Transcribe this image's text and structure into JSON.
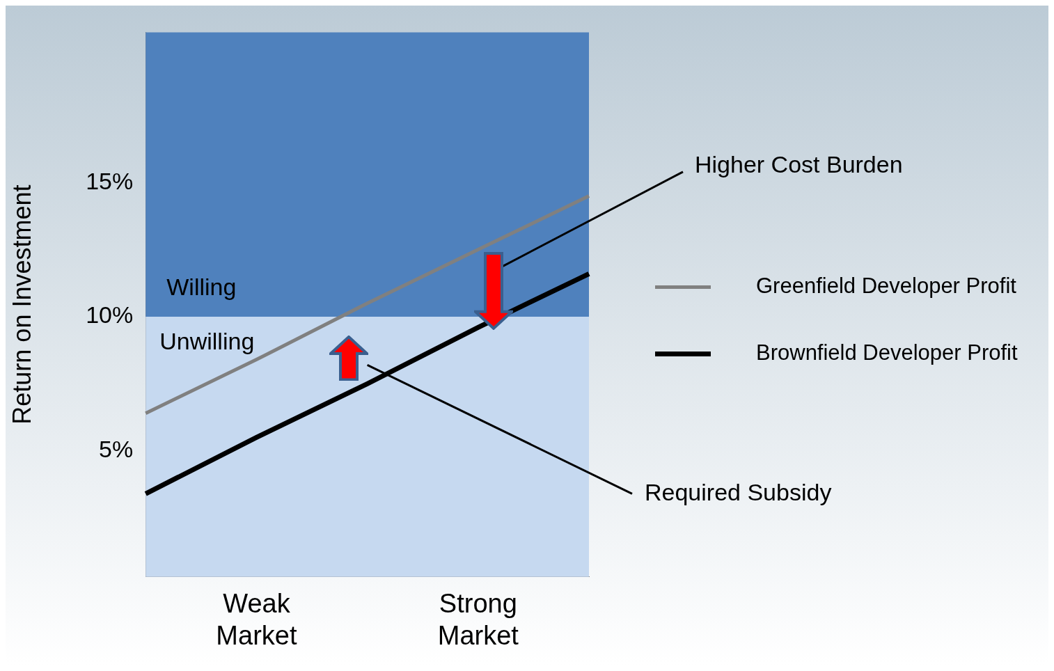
{
  "chart_data": {
    "type": "line",
    "ylabel": "Return on Investment",
    "categories": [
      null,
      "Weak Market",
      null,
      "Strong Market",
      null
    ],
    "ylim": [
      0.3,
      20.6
    ],
    "yticks": [
      {
        "value": 5,
        "label": "5%"
      },
      {
        "value": 10,
        "label": "10%"
      },
      {
        "value": 15,
        "label": "15%"
      }
    ],
    "series": [
      {
        "name": "Greenfield Developer Profit",
        "color": "#808080",
        "values": [
          6.4,
          8.4,
          10.5,
          12.5,
          14.5
        ]
      },
      {
        "name": "Brownfield Developer Profit",
        "color": "#000000",
        "values": [
          3.4,
          5.5,
          7.5,
          9.6,
          11.6
        ]
      }
    ],
    "bands": [
      {
        "axis": "y",
        "from": 10,
        "to": 20.6,
        "label": "Willing",
        "color": "#4f81bd"
      },
      {
        "axis": "y",
        "from": 0.3,
        "to": 10,
        "label": "Unwilling",
        "color": "#c6d9f0"
      }
    ],
    "annotations": [
      "Higher Cost Burden",
      "Required Subsidy"
    ],
    "legend": "right",
    "grid": false,
    "marker": "none",
    "line_style": "solid"
  }
}
